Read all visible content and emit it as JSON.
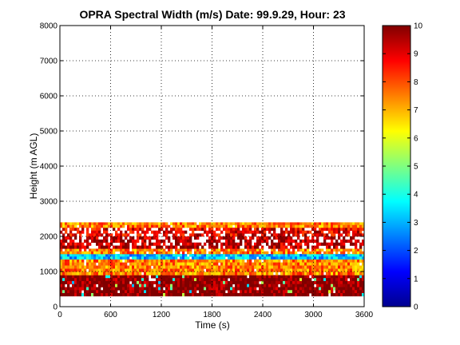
{
  "chart_data": {
    "type": "heatmap",
    "title": "OPRA Spectral Width (m/s)  Date: 99.9.29, Hour: 23",
    "xlabel": "Time (s)",
    "ylabel": "Height (m AGL)",
    "xlim": [
      0,
      3600
    ],
    "ylim": [
      0,
      8000
    ],
    "x_ticks": [
      "0",
      "600",
      "1200",
      "1800",
      "2400",
      "3000",
      "3600"
    ],
    "y_ticks": [
      "0",
      "1000",
      "2000",
      "3000",
      "4000",
      "5000",
      "6000",
      "7000",
      "8000"
    ],
    "grid": true,
    "colorbar": {
      "range": [
        0,
        10
      ],
      "ticks": [
        "0",
        "1",
        "2",
        "3",
        "4",
        "5",
        "6",
        "7",
        "8",
        "9",
        "10"
      ],
      "colormap": "jet"
    },
    "bands": [
      {
        "y0": 300,
        "y1": 900,
        "value": 10,
        "note": "dark red, sporadic gaps"
      },
      {
        "y0": 900,
        "y1": 1350,
        "value": 7.5,
        "note": "yellow/orange/red mix"
      },
      {
        "y0": 1350,
        "y1": 1500,
        "value": 3.2,
        "note": "cyan"
      },
      {
        "y0": 1500,
        "y1": 1650,
        "value": 7.5,
        "note": "yellow/orange"
      },
      {
        "y0": 1650,
        "y1": 2000,
        "value": 9.5,
        "note": "red with white gaps"
      },
      {
        "y0": 2000,
        "y1": 2250,
        "value": 9.0,
        "note": "patchy red/white"
      },
      {
        "y0": 2250,
        "y1": 2400,
        "value": 7.5,
        "note": "yellow/orange/red top band"
      }
    ]
  }
}
